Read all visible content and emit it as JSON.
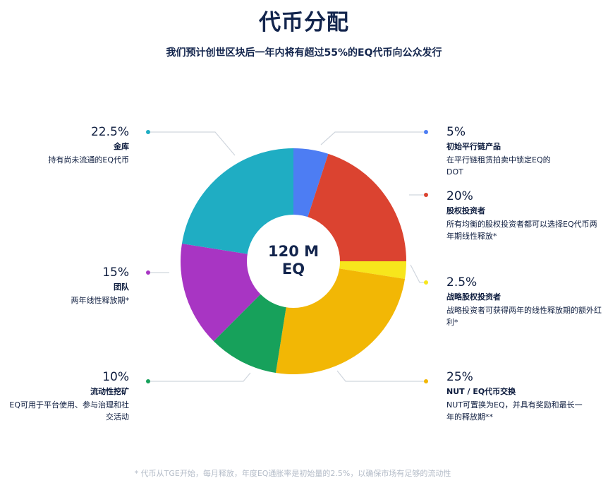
{
  "title": "代币分配",
  "subtitle": "我们预计创世区块后一年内将有超过55%的EQ代币向公众发行",
  "center_label": [
    "120 M",
    "EQ"
  ],
  "footnote": "* 代币从TGE开始，每月释放，年度EQ通胀率是初始量的2.5%，以确保市场有足够的流动性",
  "allocations": {
    "treasury": {
      "percent": "22.5%",
      "name": "金库",
      "desc": "持有尚未流通的EQ代币",
      "color": "#1fadc3"
    },
    "team": {
      "percent": "15%",
      "name": "团队",
      "desc": "两年线性释放期*",
      "color": "#a835c3"
    },
    "liquidity": {
      "percent": "10%",
      "name": "流动性挖矿",
      "desc": "EQ可用于平台使用、参与治理和社交活动",
      "color": "#17a15b"
    },
    "parachain": {
      "percent": "5%",
      "name": "初始平行链产品",
      "desc": "在平行链租赁拍卖中锁定EQ的DOT",
      "color": "#4d7df3"
    },
    "equity": {
      "percent": "20%",
      "name": "股权投资者",
      "desc": "所有均衡的股权投资者都可以选择EQ代币两年期线性释放*",
      "color": "#db4330"
    },
    "strategic": {
      "percent": "2.5%",
      "name": "战略股权投资者",
      "desc": "战略投资者可获得两年的线性释放期的额外红利*",
      "color": "#f7e61c"
    },
    "nut": {
      "percent": "25%",
      "name": "NUT / EQ代币交换",
      "desc": "NUT可置换为EQ，并具有奖励和最长一年的释放期**",
      "color": "#f2b705"
    }
  },
  "chart_data": {
    "type": "pie",
    "title": "代币分配",
    "total": "120 M EQ",
    "categories": [
      "初始平行链产品",
      "股权投资者",
      "战略股权投资者",
      "NUT / EQ代币交换",
      "流动性挖矿",
      "团队",
      "金库"
    ],
    "values": [
      5,
      20,
      2.5,
      25,
      10,
      15,
      22.5
    ],
    "colors": [
      "#4d7df3",
      "#db4330",
      "#f7e61c",
      "#f2b705",
      "#17a15b",
      "#a835c3",
      "#1fadc3"
    ],
    "unit": "%"
  }
}
